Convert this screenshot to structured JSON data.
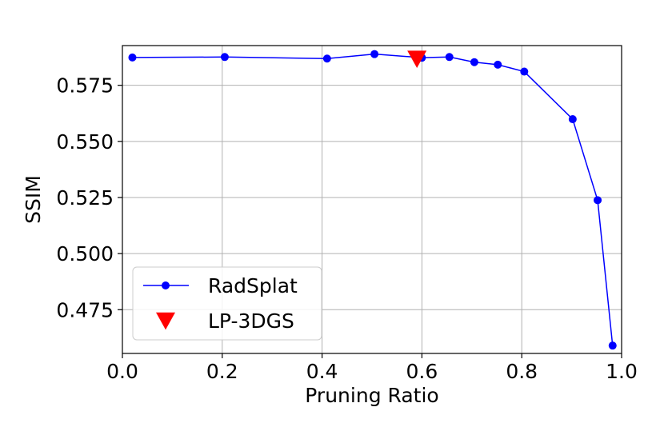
{
  "chart_data": {
    "type": "line",
    "xlabel": "Pruning Ratio",
    "ylabel": "SSIM",
    "xlim": [
      0.0,
      1.0
    ],
    "ylim": [
      0.4555,
      0.5927
    ],
    "grid": true,
    "legend_placement": "lower-left",
    "x_ticks": [
      0.0,
      0.2,
      0.4,
      0.6,
      0.8,
      1.0
    ],
    "x_tick_labels": [
      "0.0",
      "0.2",
      "0.4",
      "0.6",
      "0.8",
      "1.0"
    ],
    "y_ticks": [
      0.475,
      0.5,
      0.525,
      0.55,
      0.575
    ],
    "y_tick_labels": [
      "0.475",
      "0.500",
      "0.525",
      "0.550",
      "0.575"
    ],
    "series": [
      {
        "name": "RadSplat",
        "color": "#0000ff",
        "marker": "circle",
        "x": [
          0.02,
          0.205,
          0.41,
          0.505,
          0.6,
          0.655,
          0.705,
          0.752,
          0.805,
          0.902,
          0.952,
          0.982
        ],
        "y": [
          0.5874,
          0.5876,
          0.5869,
          0.5889,
          0.5873,
          0.5876,
          0.5853,
          0.5842,
          0.5811,
          0.5599,
          0.5238,
          0.459
        ]
      },
      {
        "name": "LP-3DGS",
        "color": "#ff0000",
        "marker": "triangle-down",
        "x": [
          0.59
        ],
        "y": [
          0.5868
        ]
      }
    ]
  }
}
